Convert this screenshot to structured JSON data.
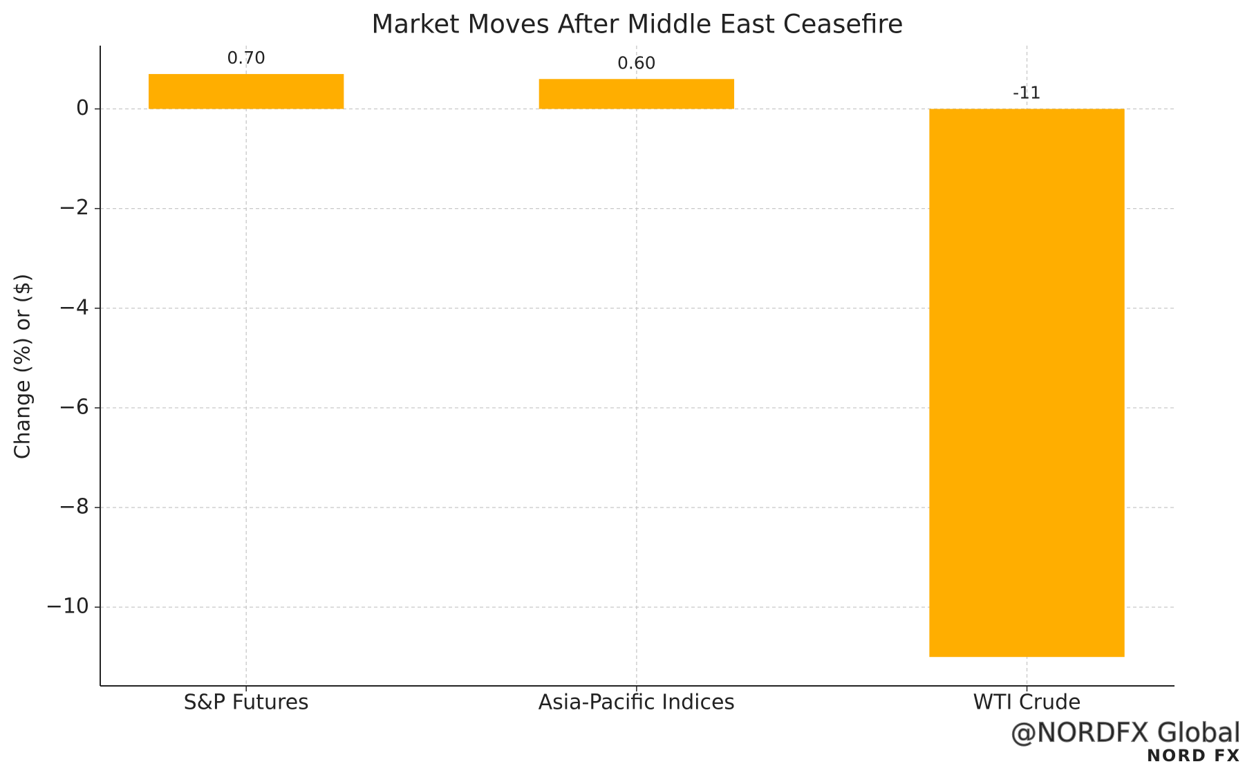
{
  "chart_data": {
    "type": "bar",
    "title": "Market Moves After Middle East Ceasefire",
    "y_label": "Change (%) or ($)",
    "categories": [
      "S&P Futures",
      "Asia-Pacific Indices",
      "WTI Crude"
    ],
    "values": [
      0.7,
      0.6,
      -11
    ],
    "value_labels": [
      "0.70",
      "0.60",
      "-11"
    ],
    "color": "#ffae00",
    "ylim": [
      -11.58,
      1.27
    ],
    "yticks": [
      0,
      {
        "value": -2,
        "label": "−2"
      },
      {
        "value": -4,
        "label": "−4"
      },
      {
        "value": -6,
        "label": "−6"
      },
      {
        "value": -8,
        "label": "−8"
      },
      {
        "value": -10,
        "label": "−10"
      }
    ],
    "grid": true,
    "watermark": "@NORDFX Global",
    "logo": "NORD FX"
  }
}
